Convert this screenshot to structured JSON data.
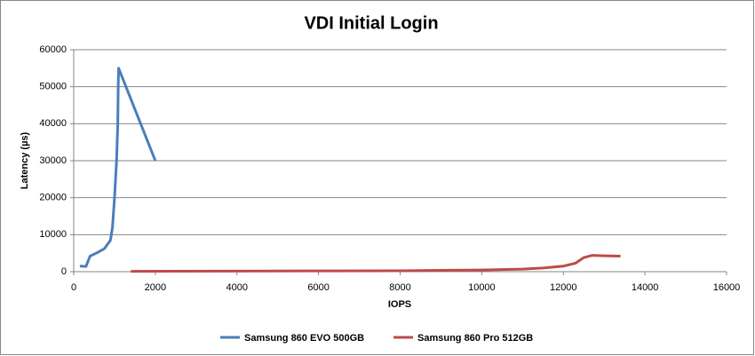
{
  "chart_data": {
    "type": "line",
    "title": "VDI Initial Login",
    "x_label": "IOPS",
    "y_label": "Latency (µs)",
    "xlim": [
      0,
      16000
    ],
    "xticks": [
      0,
      2000,
      4000,
      6000,
      8000,
      10000,
      12000,
      14000,
      16000
    ],
    "ylim": [
      0,
      60000
    ],
    "yticks": [
      0,
      10000,
      20000,
      30000,
      40000,
      50000,
      60000
    ],
    "grid": true,
    "legend": "bottom",
    "series": [
      {
        "name": "Samsung 860 EVO 500GB",
        "color": "#4a7ebb",
        "x": [
          150,
          300,
          400,
          550,
          750,
          900,
          950,
          1000,
          1050,
          1080,
          1090,
          1100,
          2000
        ],
        "values": [
          1500,
          1400,
          4200,
          5000,
          6200,
          8500,
          12000,
          20000,
          30000,
          40000,
          50000,
          55000,
          30000
        ]
      },
      {
        "name": "Samsung 860 Pro 512GB",
        "color": "#be4b48",
        "x": [
          1400,
          4000,
          6000,
          8000,
          10000,
          11000,
          11500,
          12000,
          12300,
          12500,
          12700,
          13000,
          13400
        ],
        "values": [
          100,
          150,
          200,
          250,
          450,
          700,
          1000,
          1500,
          2300,
          3800,
          4400,
          4300,
          4200
        ]
      }
    ]
  }
}
